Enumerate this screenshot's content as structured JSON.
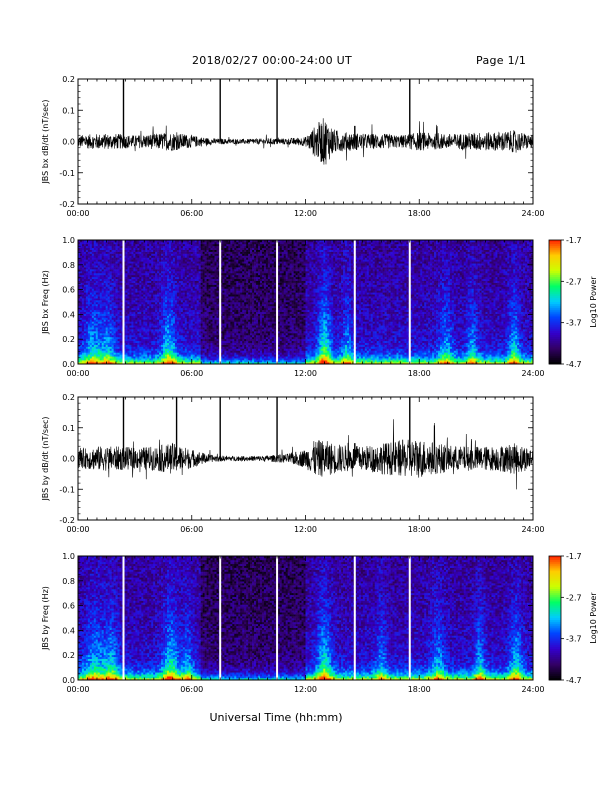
{
  "header": {
    "title": "2018/02/27  00:00-24:00 UT",
    "page": "Page 1/1"
  },
  "xaxis_label": "Universal Time (hh:mm)",
  "time_ticks": [
    "00:00",
    "06:00",
    "12:00",
    "18:00",
    "24:00"
  ],
  "colors": {
    "trace": "#000000",
    "gaps": "#ffffff",
    "colorbar": [
      "#000000",
      "#330066",
      "#3300cc",
      "#0044ff",
      "#00ccff",
      "#00ff66",
      "#ccff00",
      "#ffcc00",
      "#ff2200"
    ]
  },
  "chart_data": [
    {
      "type": "line",
      "id": "bx-wave",
      "ylabel": "JBS bx dB/dt (nT/sec)",
      "ylim": [
        -0.2,
        0.2
      ],
      "yticks": [
        "0.2",
        "0.1",
        "0.0",
        "-0.1",
        "-0.2"
      ],
      "xlim": [
        0,
        24
      ],
      "x_units": "hours UT",
      "spikes": [
        2.4,
        7.5,
        10.5,
        14.6,
        17.5
      ],
      "spike_heights": [
        0.2,
        0.2,
        0.2,
        0.05,
        0.2
      ],
      "amplitude_envelope": {
        "x": [
          0,
          1,
          2,
          3,
          4,
          5,
          6,
          7,
          8,
          9,
          10,
          11,
          12,
          12.5,
          13,
          13.5,
          14,
          14.5,
          15,
          16,
          17,
          18,
          19,
          20,
          21,
          22,
          23,
          24
        ],
        "amp": [
          0.02,
          0.025,
          0.025,
          0.02,
          0.025,
          0.03,
          0.02,
          0.01,
          0.008,
          0.008,
          0.01,
          0.01,
          0.015,
          0.05,
          0.08,
          0.04,
          0.03,
          0.03,
          0.025,
          0.025,
          0.02,
          0.03,
          0.025,
          0.025,
          0.03,
          0.03,
          0.035,
          0.02
        ]
      }
    },
    {
      "type": "heatmap",
      "id": "bx-spec",
      "ylabel": "JBS bx Freq (Hz)",
      "ylim": [
        0,
        1.0
      ],
      "yticks": [
        "1.0",
        "0.8",
        "0.6",
        "0.4",
        "0.2",
        "0.0"
      ],
      "xlim": [
        0,
        24
      ],
      "gaps": [
        2.4,
        7.5,
        10.5,
        14.6,
        17.5
      ],
      "colorbar": {
        "label": "Log10 Power",
        "ticks": [
          "-1.7",
          "-2.7",
          "-3.7",
          "-4.7"
        ],
        "range": [
          -4.7,
          -1.7
        ]
      },
      "bursts": [
        {
          "t": 0.8,
          "width": 0.5,
          "strength": 0.6
        },
        {
          "t": 1.6,
          "width": 0.4,
          "strength": 0.5
        },
        {
          "t": 4.8,
          "width": 0.4,
          "strength": 0.75
        },
        {
          "t": 13.0,
          "width": 0.35,
          "strength": 0.95
        },
        {
          "t": 14.2,
          "width": 0.3,
          "strength": 0.55
        },
        {
          "t": 19.4,
          "width": 0.4,
          "strength": 0.55
        },
        {
          "t": 20.8,
          "width": 0.3,
          "strength": 0.55
        },
        {
          "t": 23.0,
          "width": 0.3,
          "strength": 0.7
        }
      ]
    },
    {
      "type": "line",
      "id": "by-wave",
      "ylabel": "JBS by dB/dt (nT/sec)",
      "ylim": [
        -0.2,
        0.2
      ],
      "yticks": [
        "0.2",
        "0.1",
        "0.0",
        "-0.1",
        "-0.2"
      ],
      "xlim": [
        0,
        24
      ],
      "x_units": "hours UT",
      "spikes": [
        2.4,
        5.2,
        7.5,
        10.5,
        14.6,
        17.5
      ],
      "spike_heights": [
        0.2,
        0.2,
        0.2,
        0.2,
        0.05,
        0.2
      ],
      "amplitude_envelope": {
        "x": [
          0,
          1,
          2,
          3,
          4,
          5,
          6,
          7,
          8,
          9,
          10,
          11,
          12,
          12.5,
          13,
          13.5,
          14,
          14.5,
          15,
          16,
          17,
          18,
          19,
          20,
          21,
          22,
          23,
          24
        ],
        "amp": [
          0.03,
          0.04,
          0.04,
          0.035,
          0.04,
          0.05,
          0.03,
          0.012,
          0.008,
          0.008,
          0.01,
          0.015,
          0.03,
          0.06,
          0.06,
          0.05,
          0.045,
          0.04,
          0.04,
          0.05,
          0.06,
          0.065,
          0.05,
          0.04,
          0.04,
          0.04,
          0.05,
          0.035
        ]
      }
    },
    {
      "type": "heatmap",
      "id": "by-spec",
      "ylabel": "JBS by Freq (Hz)",
      "ylim": [
        0,
        1.0
      ],
      "yticks": [
        "1.0",
        "0.8",
        "0.6",
        "0.4",
        "0.2",
        "0.0"
      ],
      "xlim": [
        0,
        24
      ],
      "gaps": [
        2.4,
        7.5,
        10.5,
        14.6,
        17.5
      ],
      "colorbar": {
        "label": "Log10 Power",
        "ticks": [
          "-1.7",
          "-2.7",
          "-3.7",
          "-4.7"
        ],
        "range": [
          -4.7,
          -1.7
        ]
      },
      "bursts": [
        {
          "t": 0.9,
          "width": 0.6,
          "strength": 0.65
        },
        {
          "t": 1.8,
          "width": 0.4,
          "strength": 0.6
        },
        {
          "t": 4.9,
          "width": 0.45,
          "strength": 0.8
        },
        {
          "t": 5.8,
          "width": 0.3,
          "strength": 0.5
        },
        {
          "t": 13.0,
          "width": 0.4,
          "strength": 0.85
        },
        {
          "t": 16.0,
          "width": 0.3,
          "strength": 0.5
        },
        {
          "t": 19.0,
          "width": 0.4,
          "strength": 0.55
        },
        {
          "t": 21.2,
          "width": 0.3,
          "strength": 0.6
        },
        {
          "t": 23.1,
          "width": 0.35,
          "strength": 0.7
        }
      ]
    }
  ]
}
